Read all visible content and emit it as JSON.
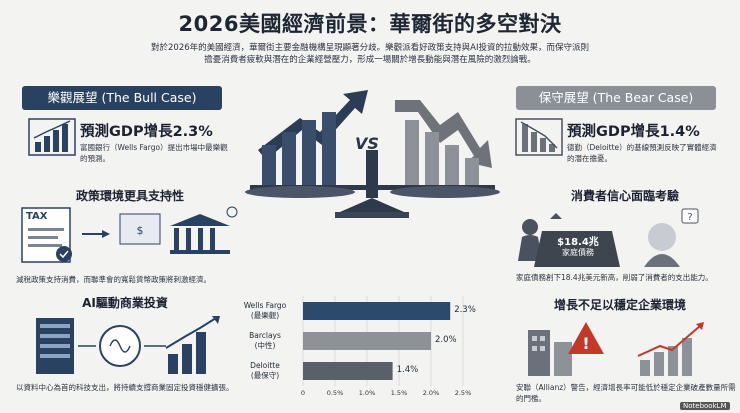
{
  "title": "2026美國經濟前景：華爾街的多空對決",
  "subtitle": "對於2026年的美國經濟，華爾街主要金融機構呈現顯著分歧。樂觀派看好政策支持與AI投資的拉動效果，而保守派則擔憂消費者疲軟與潛在的企業經營壓力，形成一場關於增長動能與潛在風險的激烈論戰。",
  "vs_label": "VS",
  "bull": {
    "header": "樂觀展望 (The Bull Case)",
    "gdp_title": "預測GDP增長2.3%",
    "gdp_note": "富國銀行（Wells Fargo）提出市場中最樂觀的預測。",
    "policy_title": "政策環境更具支持性",
    "policy_note": "減稅政策支持消費，而聯準會的寬鬆貨幣政策將刺激經濟。",
    "tax_label": "TAX",
    "ai_title": "AI驅動商業投資",
    "ai_note": "以資料中心為首的科技支出，將持續支撐商業固定投資穩健擴張。"
  },
  "bear": {
    "header": "保守展望 (The Bear Case)",
    "gdp_title": "預測GDP增長1.4%",
    "gdp_note": "德勤（Deloitte）的基線預測反映了實體經濟的潛在擔憂。",
    "consumer_title": "消費者信心面臨考驗",
    "debt_amount": "$18.4兆",
    "debt_label": "家庭債務",
    "consumer_note": "家庭債務創下18.4兆美元新高，削弱了消費者的支出能力。",
    "growth_title": "增長不足以穩定企業環境",
    "growth_note": "安聯（Allianz）警告，經濟增長率可能低於穩定企業破產數量所需的門檻。"
  },
  "chart_data": {
    "type": "bar",
    "orientation": "horizontal",
    "categories": [
      "Wells Fargo\n(最樂觀)",
      "Barclays\n(中性)",
      "Deloitte\n(最保守)"
    ],
    "values": [
      2.3,
      2.0,
      1.4
    ],
    "value_labels": [
      "2.3%",
      "2.0%",
      "1.4%"
    ],
    "xlim": [
      0,
      2.5
    ],
    "xticks": [
      "0",
      "0.5%",
      "1.0%",
      "1.5%",
      "2.0%",
      "2.5%"
    ],
    "grid": true,
    "colors": [
      "#2c4a6e",
      "#8e9296",
      "#5a6068"
    ]
  },
  "watermark": "NotebookLM",
  "colors": {
    "bull_accent": "#2a4262",
    "bear_accent": "#8b9097",
    "background": "#f3f3f1",
    "alert_red": "#c0392b"
  }
}
